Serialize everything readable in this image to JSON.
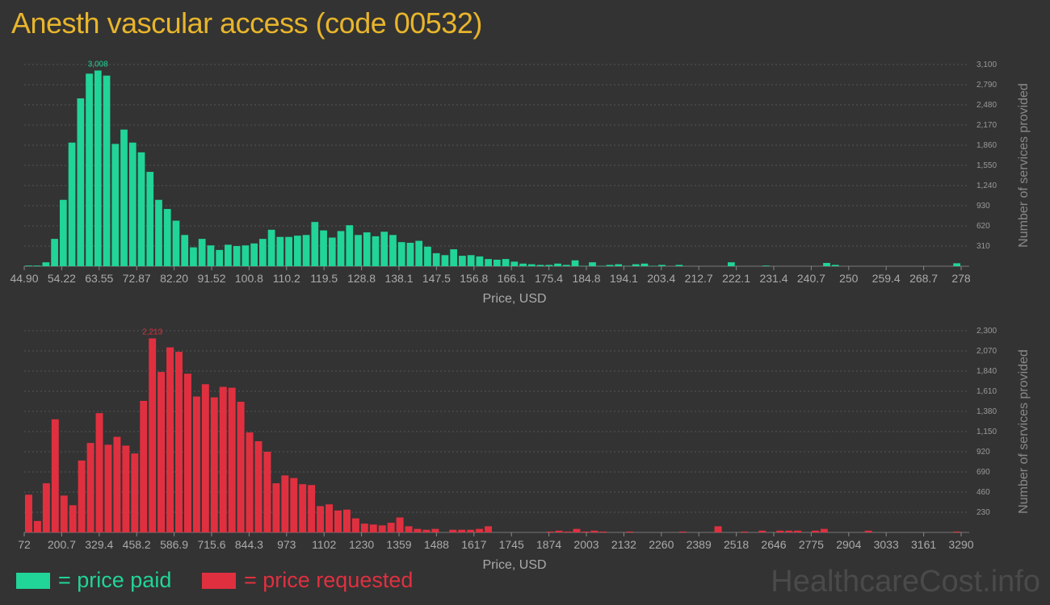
{
  "title": "Anesth vascular access (code 00532)",
  "brand": "HealthcareCost.info",
  "colors": {
    "paid": "#21d497",
    "requested": "#e03040",
    "title": "#e8b52b"
  },
  "legend": {
    "paid": "= price paid",
    "requested": "= price requested"
  },
  "chart_data": [
    {
      "type": "bar",
      "title": "",
      "xlabel": "Price, USD",
      "ylabel": "Number of services provided",
      "color": "#21d497",
      "peak_label": "3,008",
      "ylim": [
        0,
        3100
      ],
      "y_ticks": [
        310,
        620,
        930,
        1240,
        1550,
        1860,
        2170,
        2480,
        2790,
        3100
      ],
      "y_tick_labels": [
        "310",
        "620",
        "930",
        "1,240",
        "1,550",
        "1,860",
        "2,170",
        "2,480",
        "2,790",
        "3,100"
      ],
      "x_ticks": [
        "44.90",
        "54.22",
        "63.55",
        "72.87",
        "82.20",
        "91.52",
        "100.8",
        "110.2",
        "119.5",
        "128.8",
        "138.1",
        "147.5",
        "156.8",
        "166.1",
        "175.4",
        "184.8",
        "194.1",
        "203.4",
        "212.7",
        "222.1",
        "231.4",
        "240.7",
        "250",
        "259.4",
        "268.7",
        "278"
      ],
      "values": [
        10,
        10,
        60,
        420,
        1020,
        1900,
        2580,
        2960,
        3008,
        2930,
        1880,
        2100,
        1900,
        1750,
        1450,
        1020,
        880,
        700,
        480,
        290,
        420,
        320,
        250,
        330,
        310,
        320,
        350,
        420,
        560,
        450,
        450,
        470,
        480,
        680,
        550,
        440,
        540,
        630,
        480,
        520,
        460,
        530,
        480,
        370,
        360,
        390,
        300,
        200,
        170,
        260,
        160,
        170,
        150,
        110,
        100,
        110,
        70,
        40,
        30,
        20,
        20,
        40,
        20,
        90,
        5,
        60,
        5,
        20,
        30,
        5,
        30,
        40,
        5,
        20,
        0,
        20,
        0,
        0,
        0,
        0,
        0,
        60,
        0,
        0,
        0,
        10,
        0,
        0,
        0,
        0,
        0,
        0,
        50,
        20,
        0,
        0,
        0,
        0,
        0,
        0,
        0,
        0,
        0,
        0,
        0,
        0,
        0,
        45
      ]
    },
    {
      "type": "bar",
      "title": "",
      "xlabel": "Price, USD",
      "ylabel": "Number of services provided",
      "color": "#e03040",
      "peak_label": "2,213",
      "ylim": [
        0,
        2300
      ],
      "y_ticks": [
        230,
        460,
        690,
        920,
        1150,
        1380,
        1610,
        1840,
        2070,
        2300
      ],
      "y_tick_labels": [
        "230",
        "460",
        "690",
        "920",
        "1,150",
        "1,380",
        "1,610",
        "1,840",
        "2,070",
        "2,300"
      ],
      "x_ticks": [
        "72",
        "200.7",
        "329.4",
        "458.2",
        "586.9",
        "715.6",
        "844.3",
        "973",
        "1102",
        "1230",
        "1359",
        "1488",
        "1617",
        "1745",
        "1874",
        "2003",
        "2132",
        "2260",
        "2389",
        "2518",
        "2646",
        "2775",
        "2904",
        "3033",
        "3161",
        "3290"
      ],
      "values": [
        430,
        130,
        560,
        1290,
        420,
        310,
        820,
        1020,
        1360,
        1000,
        1090,
        990,
        900,
        1500,
        2213,
        1830,
        2110,
        2060,
        1810,
        1550,
        1690,
        1540,
        1660,
        1650,
        1490,
        1140,
        1040,
        920,
        560,
        650,
        620,
        550,
        540,
        300,
        320,
        250,
        260,
        160,
        100,
        90,
        80,
        110,
        170,
        70,
        40,
        30,
        40,
        0,
        30,
        30,
        30,
        40,
        70,
        0,
        0,
        0,
        0,
        0,
        0,
        10,
        20,
        10,
        40,
        10,
        20,
        10,
        0,
        0,
        10,
        0,
        0,
        0,
        0,
        0,
        10,
        0,
        0,
        0,
        70,
        0,
        0,
        10,
        0,
        20,
        0,
        20,
        20,
        20,
        0,
        20,
        40,
        0,
        0,
        0,
        0,
        20,
        0,
        0,
        0,
        0,
        0,
        0,
        0,
        0,
        0,
        10
      ]
    }
  ]
}
